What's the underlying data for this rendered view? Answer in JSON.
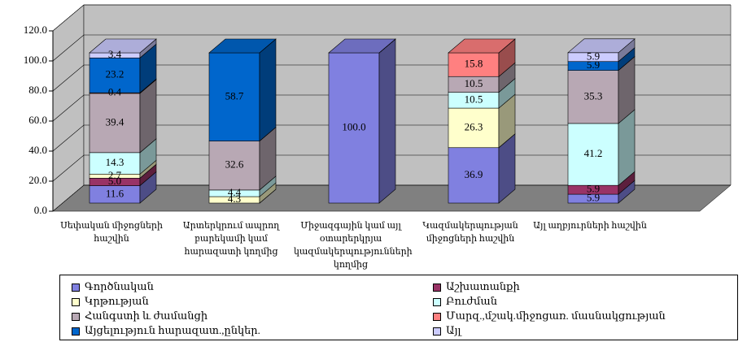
{
  "chart_data": {
    "type": "stacked_bar_3d",
    "categories": [
      "Սեփական միջոցների հաշվին",
      "Արտերկրում ապրող բարեկամի կամ հարազատի կողմից",
      "Միջազգային կամ այլ օտարերկրյա կազմակերպությունների կողմից",
      "Կազմակերպության միջոցների հաշվին",
      "Այլ աղբյուրների հաշվին"
    ],
    "series": [
      {
        "name": "Գործնական",
        "color": "#8080e0",
        "values": [
          11.6,
          0,
          100.0,
          36.9,
          5.9
        ],
        "value_labels": [
          "11.6",
          null,
          "100.0",
          "36.9",
          "5.9"
        ]
      },
      {
        "name": "Աշխատանքի",
        "color": "#993366",
        "values": [
          5.0,
          0,
          0,
          0,
          5.9
        ],
        "value_labels": [
          "5.0",
          null,
          null,
          null,
          "5.9"
        ]
      },
      {
        "name": "Կրթության",
        "color": "#ffffcc",
        "values": [
          2.7,
          4.3,
          0,
          26.3,
          0
        ],
        "value_labels": [
          "2.7",
          "4.3",
          null,
          "26.3",
          null
        ]
      },
      {
        "name": "Բուժման",
        "color": "#ccffff",
        "values": [
          14.3,
          4.4,
          0,
          10.5,
          41.2
        ],
        "value_labels": [
          "14.3",
          "4.4",
          null,
          "10.5",
          "41.2"
        ]
      },
      {
        "name": "Հանգստի և ժամանցի",
        "color": "#b8a8b4",
        "values": [
          39.4,
          32.6,
          0,
          10.5,
          35.3
        ],
        "value_labels": [
          "39.4",
          "32.6",
          null,
          "10.5",
          "35.3"
        ]
      },
      {
        "name": "Մարզ.,մշակ.միջոցառ. մասնակցության",
        "color": "#ff8080",
        "values": [
          0.4,
          0,
          0,
          15.8,
          0
        ],
        "value_labels": [
          "0.4",
          null,
          null,
          "15.8",
          null
        ]
      },
      {
        "name": "Այցելություն հարազատ.,ընկեր.",
        "color": "#0066cc",
        "values": [
          23.2,
          58.7,
          0,
          0,
          5.9
        ],
        "value_labels": [
          "23.2",
          "58.7",
          null,
          null,
          "5.9"
        ]
      },
      {
        "name": "Այլ",
        "color": "#ccccff",
        "values": [
          3.4,
          0,
          0,
          0,
          5.9
        ],
        "value_labels": [
          "3.4",
          null,
          null,
          null,
          "5.9"
        ]
      }
    ],
    "ylim": [
      0,
      120
    ],
    "yticks": [
      {
        "value": 0,
        "label": "0.0"
      },
      {
        "value": 20,
        "label": "20.0"
      },
      {
        "value": 40,
        "label": "40.0"
      },
      {
        "value": 60,
        "label": "60.0"
      },
      {
        "value": 80,
        "label": "80.0"
      },
      {
        "value": 100,
        "label": "100.0"
      },
      {
        "value": 120,
        "label": "120.0"
      }
    ],
    "grid": true
  }
}
